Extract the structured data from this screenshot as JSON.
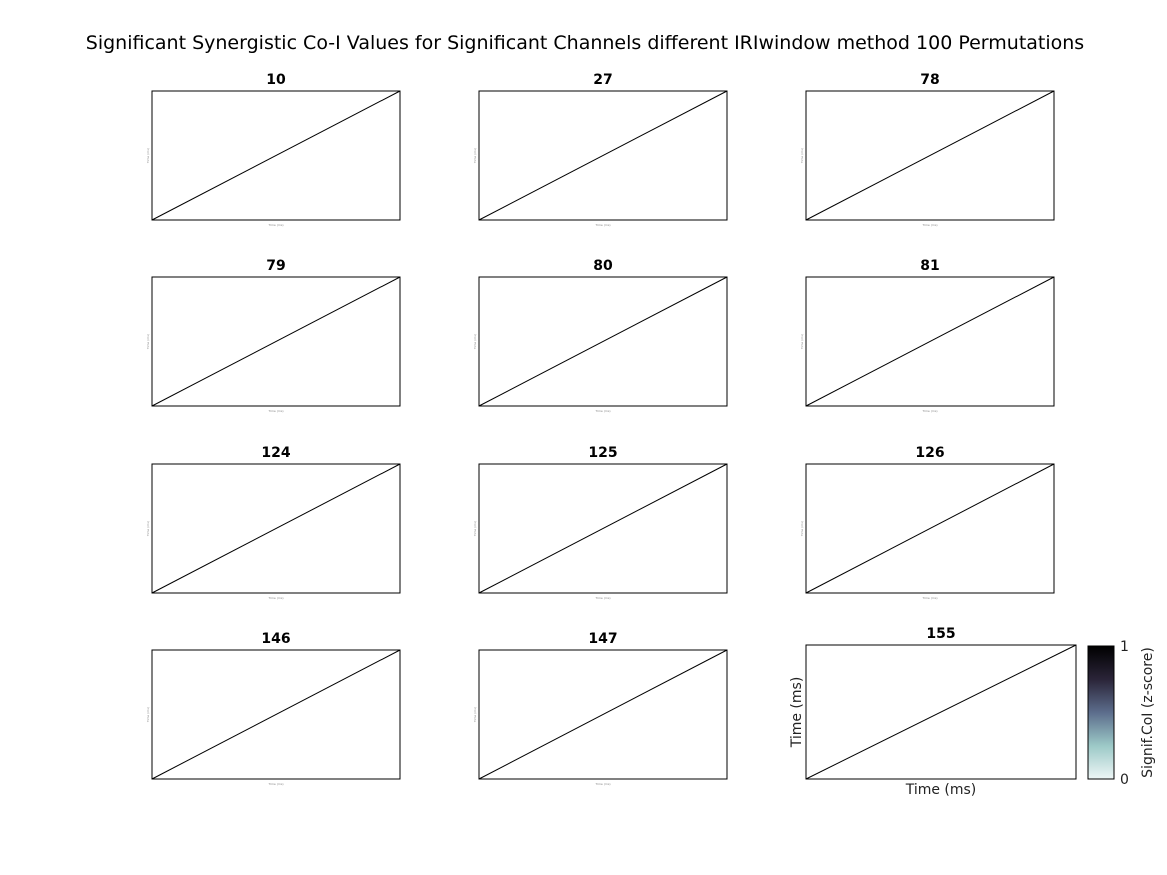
{
  "chart_data": {
    "type": "heatmap",
    "title": "Significant Synergistic Co-I Values for Significant Channels different IRIwindow method 100 Permutations",
    "panels": [
      {
        "title": "10"
      },
      {
        "title": "27"
      },
      {
        "title": "78"
      },
      {
        "title": "79"
      },
      {
        "title": "80"
      },
      {
        "title": "81"
      },
      {
        "title": "124"
      },
      {
        "title": "125"
      },
      {
        "title": "126"
      },
      {
        "title": "146"
      },
      {
        "title": "147"
      },
      {
        "title": "155"
      }
    ],
    "xlabel": "Time (ms)",
    "ylabel": "Time (ms)",
    "diagonal_line": true,
    "colorbar": {
      "label": "Signif.CoI (z-score)",
      "range": [
        0,
        1
      ],
      "ticks": [
        "0",
        "1"
      ],
      "colors": [
        "#eef6f6",
        "#9cc9c7",
        "#5c6d8c",
        "#2a2438",
        "#000000"
      ]
    }
  }
}
